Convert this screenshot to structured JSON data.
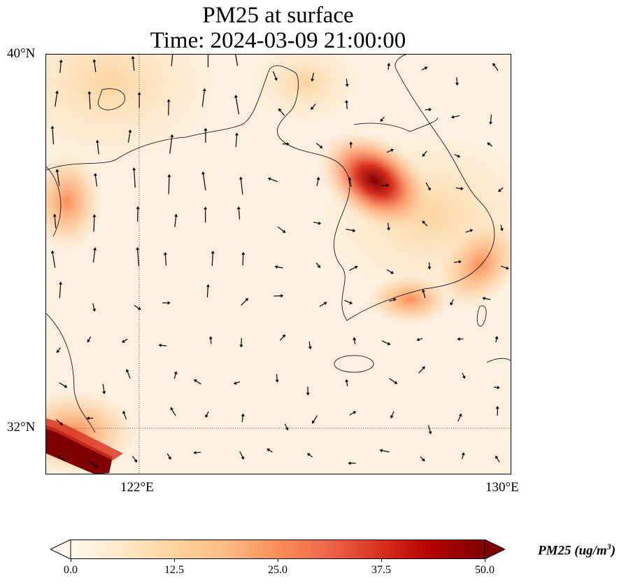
{
  "title": {
    "line1": "PM25 at surface",
    "line2": "Time: 2024-03-09 21:00:00"
  },
  "map": {
    "lat_ticks": [
      "40°N",
      "32°N"
    ],
    "lon_ticks": [
      "122°E",
      "130°E"
    ],
    "extent": {
      "lon": [
        120,
        130
      ],
      "lat": [
        31,
        40
      ]
    }
  },
  "colorbar": {
    "label": "PM25 (ug/m",
    "label_sup": "3",
    "label_end": ")",
    "ticks": [
      "0.0",
      "12.5",
      "25.0",
      "37.5",
      "50.0"
    ],
    "range": [
      0,
      50
    ],
    "colors": [
      "#fff7ec",
      "#fee8c8",
      "#fdd49e",
      "#fdbb84",
      "#fc8d59",
      "#ef6548",
      "#d7301f",
      "#b30000",
      "#7f0000"
    ]
  }
}
